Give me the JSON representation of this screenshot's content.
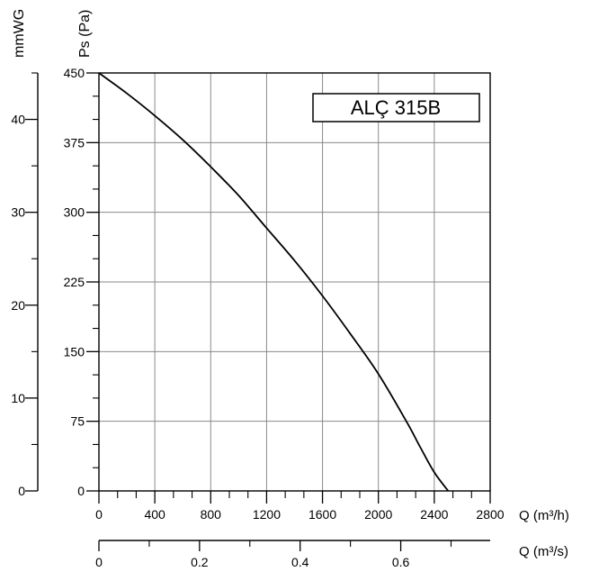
{
  "chart_data": {
    "type": "line",
    "title": "ALÇ 315B",
    "ylabel_pa": "Ps (Pa)",
    "ylabel_mmwg": "mmWG",
    "xlabel_m3h": "Q (m³/h)",
    "xlabel_m3s": "Q (m³/s)",
    "xlim_m3h": [
      0,
      2800
    ],
    "ylim_pa": [
      0,
      450
    ],
    "ylim_mmwg": [
      0,
      45
    ],
    "xlim_m3s": [
      0,
      0.7778
    ],
    "grid": true,
    "x_ticks_m3h": [
      "0",
      "400",
      "800",
      "1200",
      "1600",
      "2000",
      "2400",
      "2800"
    ],
    "y_ticks_pa": [
      "0",
      "75",
      "150",
      "225",
      "300",
      "375",
      "450"
    ],
    "y_ticks_mmwg": [
      "0",
      "10",
      "20",
      "30",
      "40"
    ],
    "x_ticks_m3s": [
      "0",
      "0.2",
      "0.4",
      "0.6"
    ],
    "series": [
      {
        "name": "",
        "x": [
          0,
          200,
          400,
          600,
          800,
          1000,
          1200,
          1400,
          1600,
          1800,
          2000,
          2200,
          2300,
          2400,
          2500
        ],
        "y": [
          450,
          428,
          404,
          378,
          349,
          318,
          283,
          248,
          210,
          169,
          126,
          75,
          47,
          20,
          0
        ]
      }
    ]
  }
}
